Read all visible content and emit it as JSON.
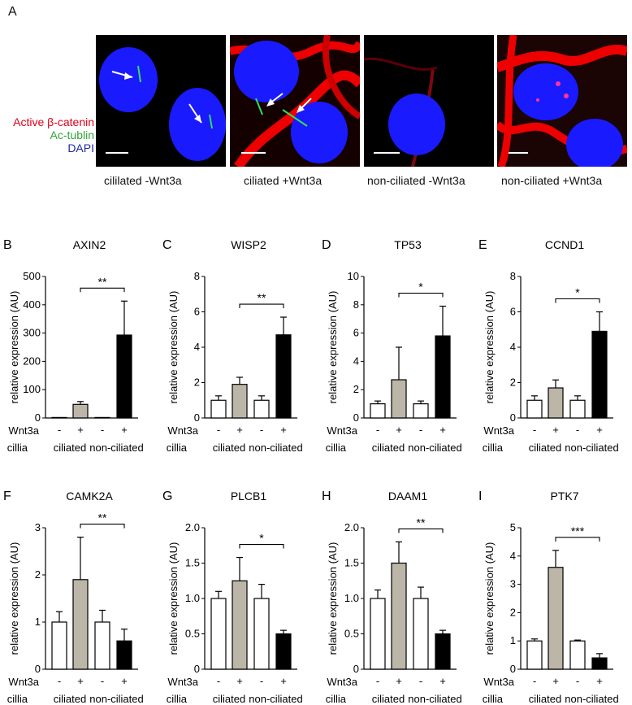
{
  "figure": {
    "panel_A_label": "A",
    "stain_legend": [
      {
        "text": "Active β-catenin",
        "color": "#e0001b"
      },
      {
        "text": "Ac-tublin",
        "color": "#2ea836"
      },
      {
        "text": "DAPI",
        "color": "#1f2a9c"
      }
    ],
    "micrographs": [
      {
        "caption": "cililated -Wnt3a"
      },
      {
        "caption": "ciliated +Wnt3a"
      },
      {
        "caption": "non-ciliated -Wnt3a"
      },
      {
        "caption": "non-ciliated +Wnt3a"
      }
    ]
  },
  "colors": {
    "ciliated_treated": "#bcb6a8",
    "nonciliated_treated": "#000000",
    "control": "#ffffff"
  },
  "chart_data": [
    {
      "panel": "B",
      "type": "bar",
      "title": "AXIN2",
      "ylabel": "relative expression (AU)",
      "ylim": [
        0,
        500
      ],
      "ticks": [
        "0",
        "100",
        "200",
        "300",
        "400",
        "500"
      ],
      "values": [
        1,
        48,
        1,
        293
      ],
      "errors": [
        0,
        10,
        0,
        120
      ],
      "significance": "**",
      "row_labels": [
        "Wnt3a",
        "cillia"
      ],
      "treatment": [
        "-",
        "+",
        "-",
        "+"
      ],
      "groups": [
        "ciliated",
        "non-ciliated"
      ]
    },
    {
      "panel": "C",
      "type": "bar",
      "title": "WISP2",
      "ylabel": "relative expression (AU)",
      "ylim": [
        0,
        8
      ],
      "ticks": [
        "0",
        "2",
        "4",
        "6",
        "8"
      ],
      "values": [
        1,
        1.9,
        1,
        4.7
      ],
      "errors": [
        0.25,
        0.4,
        0.25,
        1.0
      ],
      "significance": "**",
      "row_labels": [
        "Wnt3a",
        "cillia"
      ],
      "treatment": [
        "-",
        "+",
        "-",
        "+"
      ],
      "groups": [
        "ciliated",
        "non-ciliated"
      ]
    },
    {
      "panel": "D",
      "type": "bar",
      "title": "TP53",
      "ylabel": "relative expression (AU)",
      "ylim": [
        0,
        10
      ],
      "ticks": [
        "0",
        "2",
        "4",
        "6",
        "8",
        "10"
      ],
      "values": [
        1,
        2.7,
        1,
        5.8
      ],
      "errors": [
        0.2,
        2.3,
        0.2,
        2.1
      ],
      "significance": "*",
      "row_labels": [
        "Wnt3a",
        "cillia"
      ],
      "treatment": [
        "-",
        "+",
        "-",
        "+"
      ],
      "groups": [
        "ciliated",
        "non-ciliated"
      ]
    },
    {
      "panel": "E",
      "type": "bar",
      "title": "CCND1",
      "ylabel": "relative expression (AU)",
      "ylim": [
        0,
        8
      ],
      "ticks": [
        "0",
        "2",
        "4",
        "6",
        "8"
      ],
      "values": [
        1,
        1.7,
        1,
        4.9
      ],
      "errors": [
        0.25,
        0.45,
        0.25,
        1.1
      ],
      "significance": "*",
      "row_labels": [
        "Wnt3a",
        "cillia"
      ],
      "treatment": [
        "-",
        "+",
        "-",
        "+"
      ],
      "groups": [
        "ciliated",
        "non-ciliated"
      ]
    },
    {
      "panel": "F",
      "type": "bar",
      "title": "CAMK2A",
      "ylabel": "relative expression (AU)",
      "ylim": [
        0,
        3
      ],
      "ticks": [
        "0",
        "1",
        "2",
        "3"
      ],
      "values": [
        1,
        1.9,
        1,
        0.6
      ],
      "errors": [
        0.22,
        0.9,
        0.25,
        0.25
      ],
      "significance": "**",
      "row_labels": [
        "Wnt3a",
        "cillia"
      ],
      "treatment": [
        "-",
        "+",
        "-",
        "+"
      ],
      "groups": [
        "ciliated",
        "non-ciliated"
      ]
    },
    {
      "panel": "G",
      "type": "bar",
      "title": "PLCB1",
      "ylabel": "relative expression (AU)",
      "ylim": [
        0,
        2
      ],
      "ticks": [
        "0",
        "0.5",
        "1.0",
        "1.5",
        "2.0"
      ],
      "values": [
        1,
        1.25,
        1,
        0.5
      ],
      "errors": [
        0.1,
        0.33,
        0.2,
        0.05
      ],
      "significance": "*",
      "row_labels": [
        "Wnt3a",
        "cillia"
      ],
      "treatment": [
        "-",
        "+",
        "-",
        "+"
      ],
      "groups": [
        "ciliated",
        "non-ciliated"
      ]
    },
    {
      "panel": "H",
      "type": "bar",
      "title": "DAAM1",
      "ylabel": "relative expression (AU)",
      "ylim": [
        0,
        2
      ],
      "ticks": [
        "0",
        "0.5",
        "1.0",
        "1.5",
        "2.0"
      ],
      "values": [
        1,
        1.5,
        1,
        0.5
      ],
      "errors": [
        0.12,
        0.3,
        0.16,
        0.05
      ],
      "significance": "**",
      "row_labels": [
        "Wnt3a",
        "cillia"
      ],
      "treatment": [
        "-",
        "+",
        "-",
        "+"
      ],
      "groups": [
        "ciliated",
        "non-ciliated"
      ]
    },
    {
      "panel": "I",
      "type": "bar",
      "title": "PTK7",
      "ylabel": "relative expression (AU)",
      "ylim": [
        0,
        5
      ],
      "ticks": [
        "0",
        "1",
        "2",
        "3",
        "4",
        "5"
      ],
      "values": [
        1,
        3.6,
        1,
        0.4
      ],
      "errors": [
        0.07,
        0.6,
        0.03,
        0.15
      ],
      "significance": "***",
      "row_labels": [
        "Wnt3a",
        "cillia"
      ],
      "treatment": [
        "-",
        "+",
        "-",
        "+"
      ],
      "groups": [
        "ciliated",
        "non-ciliated"
      ]
    }
  ]
}
